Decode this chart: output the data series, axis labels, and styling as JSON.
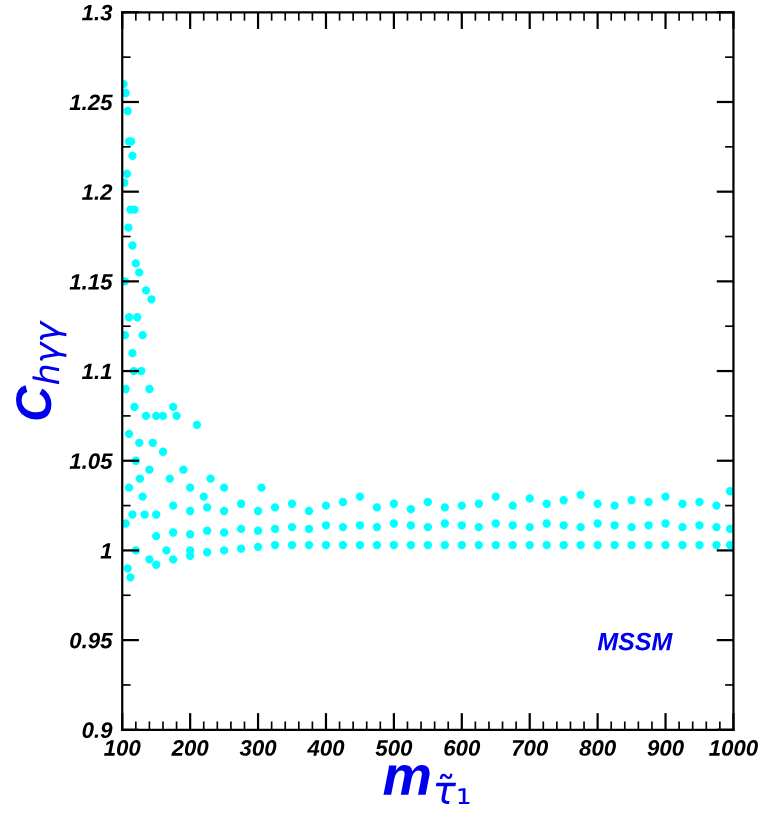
{
  "chart_data": {
    "type": "scatter",
    "xlabel": "m$_{τ̃₁}$",
    "ylabel": "C$_{hγγ}$",
    "annotations": [
      "MSSM"
    ],
    "xlim": [
      100,
      1000
    ],
    "ylim": [
      0.9,
      1.3
    ],
    "xticks": [
      100,
      200,
      300,
      400,
      500,
      600,
      700,
      800,
      900,
      1000
    ],
    "yticks": [
      0.9,
      0.95,
      1,
      1.05,
      1.1,
      1.15,
      1.2,
      1.25,
      1.3
    ],
    "marker": "circle",
    "grid": false,
    "legend": false,
    "series": [
      {
        "color": "#00ffff",
        "x": [
          102,
          105,
          108,
          110,
          113,
          115,
          103,
          107,
          112,
          118,
          109,
          115,
          120,
          104,
          125,
          135,
          143,
          110,
          122,
          130,
          115,
          128,
          140,
          105,
          118,
          135,
          150,
          160,
          175,
          180,
          210,
          110,
          125,
          145,
          160,
          190,
          230,
          250,
          305,
          120,
          140,
          170,
          200,
          220,
          110,
          130,
          115,
          105,
          108,
          112,
          120,
          140,
          165,
          200,
          104,
          117,
          126,
          133,
          150,
          175,
          200,
          225,
          250,
          275,
          300,
          325,
          350,
          375,
          400,
          425,
          450,
          475,
          500,
          525,
          550,
          575,
          600,
          625,
          650,
          675,
          700,
          725,
          750,
          775,
          800,
          825,
          850,
          875,
          900,
          925,
          950,
          975,
          995,
          150,
          175,
          200,
          225,
          250,
          275,
          300,
          325,
          350,
          375,
          400,
          425,
          450,
          475,
          500,
          525,
          550,
          575,
          600,
          625,
          650,
          675,
          700,
          725,
          750,
          775,
          800,
          825,
          850,
          875,
          900,
          925,
          950,
          975,
          995,
          150,
          175,
          200,
          225,
          250,
          275,
          300,
          325,
          350,
          375,
          400,
          425,
          450,
          475,
          500,
          525,
          550,
          575,
          600,
          625,
          650,
          675,
          700,
          725,
          750,
          775,
          800,
          825,
          850,
          875,
          900,
          925,
          950,
          975,
          995
        ],
        "values": [
          1.26,
          1.255,
          1.245,
          1.228,
          1.228,
          1.22,
          1.205,
          1.21,
          1.19,
          1.19,
          1.18,
          1.17,
          1.16,
          1.15,
          1.155,
          1.145,
          1.14,
          1.13,
          1.13,
          1.12,
          1.11,
          1.1,
          1.09,
          1.09,
          1.08,
          1.075,
          1.075,
          1.075,
          1.08,
          1.075,
          1.07,
          1.065,
          1.06,
          1.06,
          1.055,
          1.045,
          1.04,
          1.035,
          1.035,
          1.05,
          1.045,
          1.04,
          1.035,
          1.03,
          1.035,
          1.03,
          1.02,
          1.015,
          0.99,
          0.985,
          1.0,
          0.995,
          1.0,
          1.0,
          1.12,
          1.1,
          1.04,
          1.02,
          0.992,
          0.995,
          0.997,
          0.999,
          1.0,
          1.001,
          1.002,
          1.003,
          1.003,
          1.003,
          1.003,
          1.003,
          1.003,
          1.003,
          1.003,
          1.003,
          1.003,
          1.003,
          1.003,
          1.003,
          1.003,
          1.003,
          1.003,
          1.003,
          1.003,
          1.003,
          1.003,
          1.003,
          1.003,
          1.003,
          1.003,
          1.003,
          1.003,
          1.003,
          1.003,
          1.008,
          1.01,
          1.009,
          1.011,
          1.01,
          1.012,
          1.011,
          1.012,
          1.013,
          1.012,
          1.014,
          1.013,
          1.014,
          1.013,
          1.015,
          1.014,
          1.013,
          1.015,
          1.014,
          1.013,
          1.015,
          1.014,
          1.013,
          1.015,
          1.014,
          1.013,
          1.015,
          1.014,
          1.013,
          1.014,
          1.015,
          1.013,
          1.014,
          1.013,
          1.012,
          1.02,
          1.025,
          1.022,
          1.024,
          1.022,
          1.026,
          1.022,
          1.024,
          1.026,
          1.022,
          1.025,
          1.027,
          1.03,
          1.024,
          1.026,
          1.023,
          1.027,
          1.024,
          1.025,
          1.026,
          1.03,
          1.025,
          1.029,
          1.026,
          1.028,
          1.031,
          1.026,
          1.025,
          1.028,
          1.027,
          1.03,
          1.026,
          1.027,
          1.025,
          1.033
        ]
      }
    ]
  }
}
